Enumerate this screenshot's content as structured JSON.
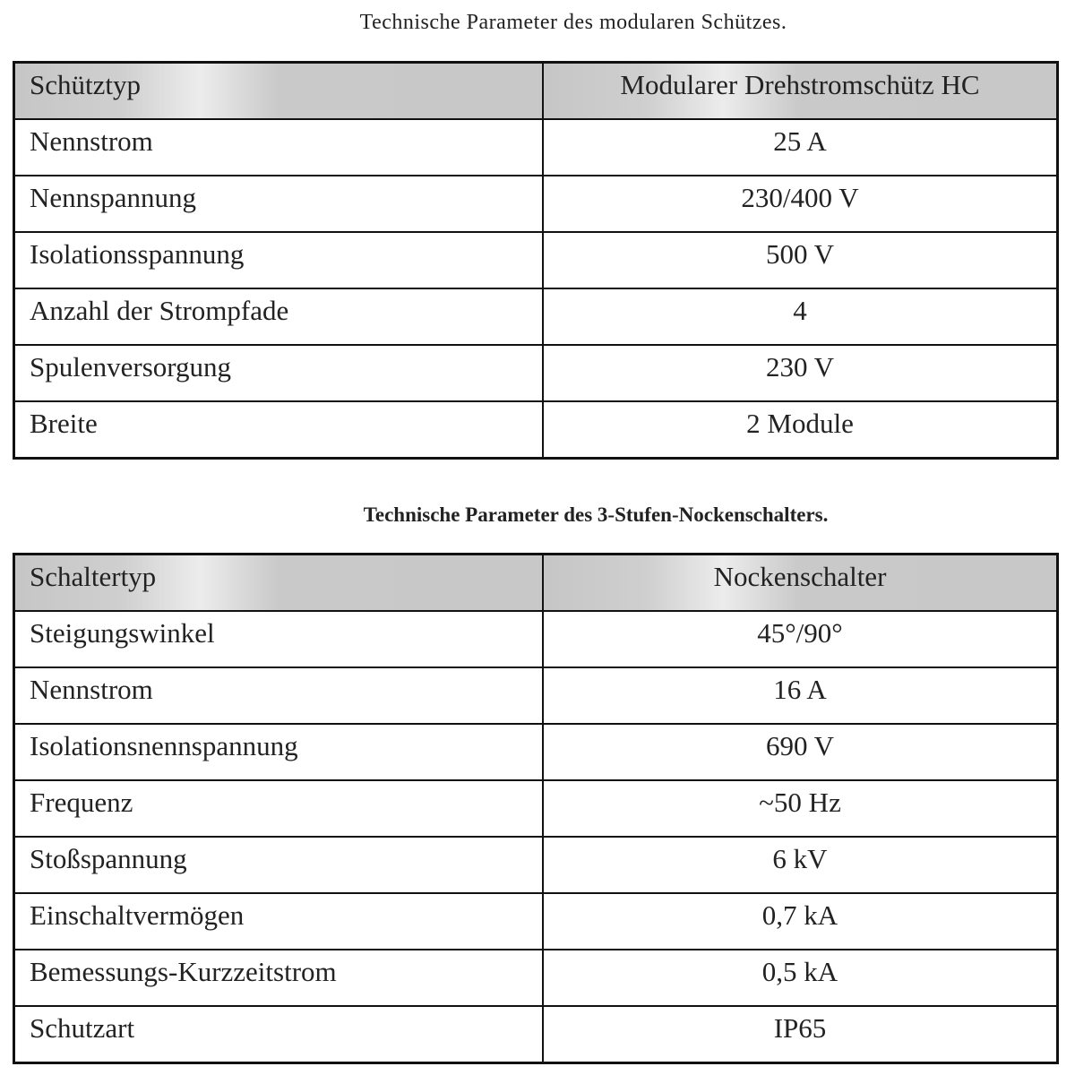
{
  "table1": {
    "title": "Technische Parameter des modularen Schützes.",
    "header": [
      "Schütztyp",
      "Modularer Drehstromschütz HC"
    ],
    "rows": [
      [
        "Nennstrom",
        "25 A"
      ],
      [
        "Nennspannung",
        "230/400 V"
      ],
      [
        "Isolationsspannung",
        "500 V"
      ],
      [
        "Anzahl der Strompfade",
        "4"
      ],
      [
        "Spulenversorgung",
        "230 V"
      ],
      [
        "Breite",
        "2 Module"
      ]
    ]
  },
  "table2": {
    "title": "Technische Parameter des 3-Stufen-Nockenschalters.",
    "header": [
      "Schaltertyp",
      "Nockenschalter"
    ],
    "rows": [
      [
        "Steigungswinkel",
        "45°/90°"
      ],
      [
        "Nennstrom",
        "16 A"
      ],
      [
        "Isolationsnennspannung",
        "690 V"
      ],
      [
        "Frequenz",
        "~50 Hz"
      ],
      [
        "Stoßspannung",
        "6 kV"
      ],
      [
        "Einschaltvermögen",
        "0,7 kA"
      ],
      [
        "Bemessungs-Kurzzeitstrom",
        "0,5 kA"
      ],
      [
        "Schutzart",
        "IP65"
      ]
    ]
  }
}
